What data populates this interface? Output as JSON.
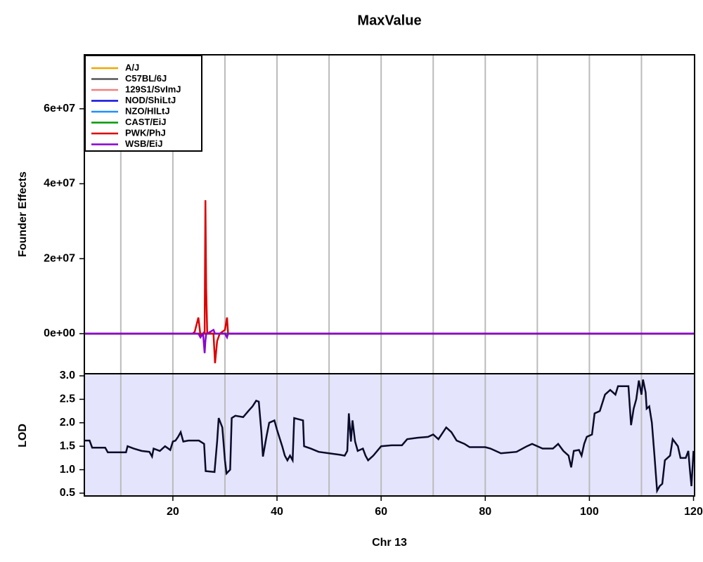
{
  "chart_data": [
    {
      "type": "line",
      "title": "MaxValue",
      "y_label": "Founder Effects",
      "legend": "top-left",
      "x": [
        3,
        23.8,
        24.2,
        24.9,
        25.3,
        25.8,
        26.1,
        26.25,
        26.4,
        26.6,
        27.8,
        28.1,
        28.5,
        29,
        30,
        30.4,
        30.6,
        31,
        120.2
      ],
      "xlim": [
        3,
        120.2
      ],
      "xgrid": [
        10,
        20,
        30,
        40,
        50,
        60,
        70,
        80,
        90,
        100,
        110
      ],
      "ylim": [
        -10700000,
        74400000
      ],
      "yticks": [
        {
          "value": 0,
          "label": "0e+00"
        },
        {
          "value": 20000000,
          "label": "2e+07"
        },
        {
          "value": 40000000,
          "label": "4e+07"
        },
        {
          "value": 60000000,
          "label": "6e+07"
        }
      ],
      "series": [
        {
          "name": "A/J",
          "color": "#f0a800",
          "values": [
            0,
            0,
            0,
            0,
            0,
            0,
            0,
            0,
            0,
            0,
            0,
            0,
            0,
            0,
            0,
            0,
            0,
            0,
            0
          ]
        },
        {
          "name": "C57BL/6J",
          "color": "#555555",
          "values": [
            0,
            0,
            0,
            0,
            0,
            0,
            0,
            0,
            0,
            0,
            0,
            0,
            0,
            0,
            0,
            0,
            0,
            0,
            0
          ]
        },
        {
          "name": "129S1/SvImJ",
          "color": "#f08080",
          "values": [
            0,
            0,
            0,
            0,
            0,
            0,
            0,
            0,
            0,
            0,
            0,
            0,
            0,
            0,
            0,
            0,
            0,
            0,
            0
          ]
        },
        {
          "name": "NOD/ShiLtJ",
          "color": "#1010e0",
          "values": [
            0,
            0,
            0,
            0,
            0,
            0,
            0,
            0,
            0,
            0,
            0,
            0,
            0,
            0,
            0,
            0,
            0,
            0,
            0
          ]
        },
        {
          "name": "NZO/HlLtJ",
          "color": "#1e90ff",
          "values": [
            0,
            0,
            0,
            0,
            0,
            0,
            0,
            0,
            0,
            0,
            0,
            0,
            0,
            0,
            0,
            0,
            0,
            0,
            0
          ]
        },
        {
          "name": "CAST/EiJ",
          "color": "#009900",
          "values": [
            0,
            0,
            0,
            0,
            0,
            0,
            0,
            0,
            0,
            0,
            0,
            0,
            0,
            0,
            0,
            0,
            0,
            0,
            0
          ]
        },
        {
          "name": "PWK/PhJ",
          "color": "#dd0000",
          "values": [
            0,
            0,
            500000,
            4300000,
            -500000,
            0,
            0,
            35600000,
            12000000,
            0,
            0,
            -7900000,
            -2000000,
            0,
            1000000,
            4300000,
            0,
            0,
            0
          ]
        },
        {
          "name": "WSB/EiJ",
          "color": "#8a00d0",
          "values": [
            0,
            0,
            0,
            0,
            -1000000,
            0,
            -5200000,
            -2000000,
            0,
            0,
            1000000,
            0,
            0,
            0,
            0,
            -1000000,
            0,
            0,
            0
          ]
        }
      ]
    },
    {
      "type": "line",
      "y_label": "LOD",
      "x_label": "Chr 13",
      "background": "#e4e4fc",
      "x": [
        3,
        4,
        4.5,
        7,
        7.5,
        11,
        11.3,
        12.5,
        14,
        15.5,
        16,
        16.3,
        17.5,
        18.5,
        19.5,
        20,
        20.5,
        21,
        21.5,
        22,
        23,
        25,
        26,
        26.3,
        28,
        28.5,
        28.8,
        29.5,
        30,
        30.3,
        31,
        31.3,
        32,
        33.5,
        34.5,
        35.3,
        36,
        36.5,
        37,
        37.3,
        38,
        38.5,
        39.5,
        40,
        41,
        41.5,
        42,
        42.5,
        43,
        43.3,
        45,
        45.2,
        46.5,
        48,
        50,
        52,
        53,
        53.5,
        53.8,
        54.2,
        54.5,
        55,
        55.5,
        56.5,
        57,
        57.5,
        58.5,
        60,
        62,
        64,
        65,
        67,
        69,
        70,
        71,
        72.5,
        73.5,
        74.5,
        76,
        77,
        80,
        81,
        83,
        86,
        88,
        89,
        91,
        93,
        94,
        95,
        96,
        96.5,
        97,
        98,
        98.5,
        99,
        99.5,
        100.5,
        101,
        102,
        103,
        104,
        105,
        105.5,
        107.5,
        108,
        108.5,
        109,
        109.5,
        110,
        110.3,
        110.8,
        111,
        111.5,
        112,
        112.5,
        113,
        113.5,
        114,
        114.5,
        115.5,
        116,
        117,
        117.5,
        118.5,
        119,
        119.3,
        119.6,
        120
      ],
      "xlim": [
        3,
        120.2
      ],
      "xgrid": [
        10,
        20,
        30,
        40,
        50,
        60,
        70,
        80,
        90,
        100,
        110
      ],
      "xticks": [
        20,
        40,
        60,
        80,
        100,
        120
      ],
      "ylim": [
        0.44,
        3.045
      ],
      "yticks": [
        0.5,
        {
          "value": 1,
          "label": "1.0"
        },
        1.5,
        {
          "value": 2,
          "label": "2.0"
        },
        2.5,
        {
          "value": 3,
          "label": "3.0"
        }
      ],
      "series": [
        {
          "color": "#0a0a2a",
          "values": [
            1.62,
            1.62,
            1.47,
            1.47,
            1.37,
            1.37,
            1.5,
            1.45,
            1.4,
            1.38,
            1.28,
            1.45,
            1.4,
            1.5,
            1.42,
            1.6,
            1.62,
            1.7,
            1.8,
            1.6,
            1.62,
            1.62,
            1.55,
            0.97,
            0.95,
            1.6,
            2.1,
            1.9,
            1.2,
            0.92,
            1.0,
            2.1,
            2.15,
            2.12,
            2.25,
            2.35,
            2.47,
            2.45,
            1.8,
            1.28,
            1.72,
            2.0,
            2.05,
            1.85,
            1.5,
            1.3,
            1.2,
            1.3,
            1.2,
            2.1,
            2.05,
            1.5,
            1.45,
            1.38,
            1.35,
            1.32,
            1.3,
            1.4,
            2.2,
            1.6,
            2.05,
            1.6,
            1.4,
            1.45,
            1.3,
            1.2,
            1.3,
            1.5,
            1.52,
            1.52,
            1.65,
            1.68,
            1.7,
            1.75,
            1.65,
            1.9,
            1.8,
            1.62,
            1.55,
            1.48,
            1.48,
            1.45,
            1.35,
            1.38,
            1.5,
            1.55,
            1.45,
            1.45,
            1.55,
            1.4,
            1.3,
            1.05,
            1.4,
            1.42,
            1.3,
            1.55,
            1.7,
            1.75,
            2.2,
            2.25,
            2.6,
            2.7,
            2.6,
            2.78,
            2.78,
            1.95,
            2.3,
            2.5,
            2.9,
            2.6,
            2.92,
            2.65,
            2.3,
            2.35,
            2.0,
            1.3,
            0.55,
            0.65,
            0.7,
            1.2,
            1.3,
            1.65,
            1.5,
            1.25,
            1.25,
            1.4,
            1.0,
            0.65,
            1.4
          ]
        }
      ]
    }
  ]
}
